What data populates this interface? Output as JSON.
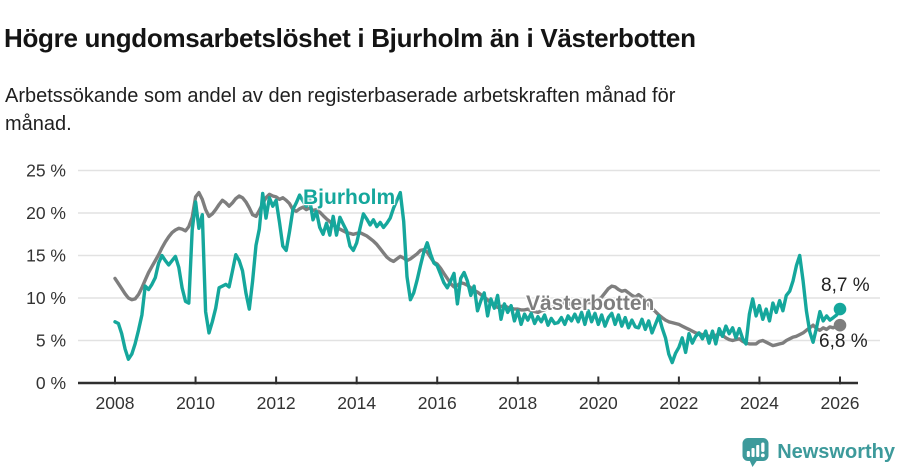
{
  "title": "Högre ungdomsarbetslöshet i Bjurholm än i Västerbotten",
  "subtitle": "Arbetssökande som andel av den registerbaserade arbetskraften månad för månad.",
  "chart_data": {
    "type": "line",
    "unit": "%",
    "frequency": "monthly",
    "x_start": "2008-01",
    "x_end": "2026-01",
    "ylim": [
      0,
      25
    ],
    "grid": "horizontal",
    "legend": "inline-labels",
    "x_ticks": [
      2008,
      2010,
      2012,
      2014,
      2016,
      2018,
      2020,
      2022,
      2024,
      2026
    ],
    "x_tick_labels": [
      "2008",
      "2010",
      "2012",
      "2014",
      "2016",
      "2018",
      "2020",
      "2022",
      "2024",
      "2026"
    ],
    "y_ticks": [
      0,
      5,
      10,
      15,
      20,
      25
    ],
    "y_tick_labels": [
      "0 %",
      "5 %",
      "10 %",
      "15 %",
      "20 %",
      "25 %"
    ],
    "series": [
      {
        "name": "Bjurholm",
        "color": "#15a79c",
        "end_label": "8,7 %",
        "last_value": 8.7,
        "values": [
          7.2,
          7.0,
          5.8,
          4.0,
          2.8,
          3.4,
          4.6,
          6.2,
          8.0,
          11.4,
          11.0,
          11.6,
          12.4,
          14.1,
          15.0,
          14.4,
          13.9,
          14.4,
          14.9,
          13.6,
          11.2,
          9.6,
          9.4,
          18.0,
          21.3,
          18.2,
          19.8,
          8.4,
          5.9,
          7.2,
          8.8,
          11.2,
          11.4,
          11.6,
          11.3,
          13.2,
          15.1,
          14.4,
          13.2,
          10.6,
          8.7,
          12.0,
          16.2,
          18.1,
          22.3,
          19.4,
          21.8,
          20.8,
          21.5,
          18.9,
          16.1,
          15.6,
          17.8,
          20.4,
          21.2,
          22.1,
          21.4,
          20.8,
          21.6,
          19.2,
          20.2,
          18.3,
          17.5,
          18.8,
          17.4,
          19.6,
          17.4,
          19.5,
          18.7,
          17.9,
          16.1,
          15.6,
          16.5,
          18.2,
          19.9,
          19.3,
          18.6,
          19.2,
          18.4,
          18.9,
          18.3,
          18.8,
          19.4,
          20.6,
          21.5,
          22.4,
          19.0,
          12.5,
          9.8,
          10.6,
          12.1,
          13.8,
          15.4,
          16.5,
          15.2,
          14.1,
          13.8,
          12.8,
          11.8,
          11.2,
          12.0,
          12.9,
          9.3,
          12.3,
          13.0,
          12.0,
          10.3,
          11.4,
          8.5,
          9.7,
          10.6,
          7.9,
          9.9,
          8.8,
          10.3,
          7.5,
          9.3,
          8.3,
          9.1,
          7.3,
          8.5,
          6.9,
          8.1,
          7.4,
          8.2,
          7.0,
          7.8,
          7.2,
          8.0,
          6.8,
          7.6,
          7.0,
          7.1,
          7.7,
          6.9,
          7.9,
          7.3,
          8.1,
          7.2,
          8.3,
          6.9,
          8.5,
          7.2,
          8.2,
          6.9,
          8.0,
          6.7,
          7.7,
          8.2,
          6.9,
          8.0,
          6.7,
          7.7,
          6.5,
          7.4,
          6.6,
          6.5,
          7.5,
          6.3,
          7.3,
          5.9,
          6.9,
          7.9,
          6.5,
          5.3,
          3.4,
          2.4,
          3.5,
          4.2,
          5.3,
          3.6,
          5.8,
          4.7,
          5.5,
          5.9,
          5.2,
          6.1,
          4.7,
          6.1,
          4.6,
          6.4,
          5.5,
          6.7,
          5.8,
          6.5,
          5.3,
          6.4,
          5.2,
          4.6,
          8.1,
          9.9,
          7.9,
          9.1,
          7.5,
          8.7,
          7.3,
          9.4,
          8.3,
          9.7,
          8.5,
          10.3,
          10.8,
          12.0,
          13.8,
          15.0,
          12.0,
          8.5,
          6.0,
          4.8,
          6.5,
          8.4,
          7.3,
          7.9,
          7.4,
          7.7,
          8.0,
          8.7
        ]
      },
      {
        "name": "Västerbotten",
        "color": "#7e7e7e",
        "end_label": "6,8 %",
        "last_value": 6.8,
        "values": [
          12.3,
          11.7,
          11.1,
          10.5,
          10.0,
          9.8,
          9.9,
          10.4,
          11.2,
          12.1,
          13.0,
          13.7,
          14.4,
          15.1,
          15.9,
          16.6,
          17.2,
          17.7,
          18.0,
          18.2,
          18.1,
          17.9,
          18.4,
          19.5,
          21.9,
          22.4,
          21.6,
          20.4,
          19.6,
          19.9,
          20.4,
          21.0,
          21.5,
          21.2,
          20.8,
          21.2,
          21.7,
          22.0,
          21.8,
          21.3,
          20.6,
          19.8,
          19.6,
          20.3,
          21.1,
          21.8,
          22.2,
          22.0,
          21.9,
          21.6,
          21.8,
          21.5,
          21.1,
          20.4,
          20.2,
          20.5,
          20.7,
          20.4,
          20.6,
          20.3,
          20.4,
          20.1,
          19.7,
          19.3,
          19.0,
          18.6,
          18.3,
          18.1,
          17.9,
          17.7,
          17.6,
          17.5,
          17.6,
          17.7,
          17.5,
          17.3,
          17.0,
          16.7,
          16.3,
          15.8,
          15.3,
          14.8,
          14.5,
          14.3,
          14.6,
          14.9,
          14.7,
          14.4,
          14.6,
          14.9,
          15.2,
          15.6,
          15.7,
          15.4,
          14.8,
          14.2,
          14.0,
          13.5,
          12.9,
          12.3,
          11.7,
          11.3,
          11.5,
          11.8,
          11.7,
          11.5,
          11.2,
          10.9,
          10.7,
          10.4,
          10.1,
          9.8,
          9.4,
          9.1,
          8.9,
          9.0,
          9.1,
          8.9,
          8.8,
          8.7,
          8.7,
          8.6,
          8.6,
          8.7,
          8.5,
          8.4,
          8.3,
          8.5,
          8.6,
          8.8,
          8.9,
          9.0,
          9.2,
          9.3,
          9.5,
          9.4,
          9.2,
          9.0,
          8.9,
          9.1,
          9.3,
          9.5,
          9.4,
          9.6,
          9.8,
          10.1,
          10.6,
          11.1,
          11.4,
          11.3,
          11.0,
          10.8,
          10.9,
          10.6,
          10.3,
          10.1,
          10.4,
          10.1,
          9.7,
          9.2,
          8.8,
          8.4,
          8.0,
          7.7,
          7.4,
          7.2,
          7.1,
          7.0,
          6.9,
          6.7,
          6.5,
          6.3,
          6.1,
          5.9,
          5.8,
          5.7,
          5.6,
          5.5,
          5.4,
          5.6,
          5.8,
          5.6,
          5.3,
          5.1,
          5.0,
          5.1,
          5.2,
          4.9,
          4.7,
          4.6,
          4.6,
          4.6,
          4.9,
          5.0,
          4.8,
          4.6,
          4.4,
          4.5,
          4.6,
          4.7,
          5.0,
          5.2,
          5.4,
          5.5,
          5.7,
          5.9,
          6.2,
          6.5,
          6.8,
          6.4,
          6.2,
          6.5,
          6.3,
          6.6,
          6.5,
          6.7,
          6.8
        ]
      }
    ]
  },
  "branding": {
    "name": "Newsworthy",
    "color": "#3d9a9b",
    "icon": "newsworthy-speech-bubble-chart-icon"
  }
}
